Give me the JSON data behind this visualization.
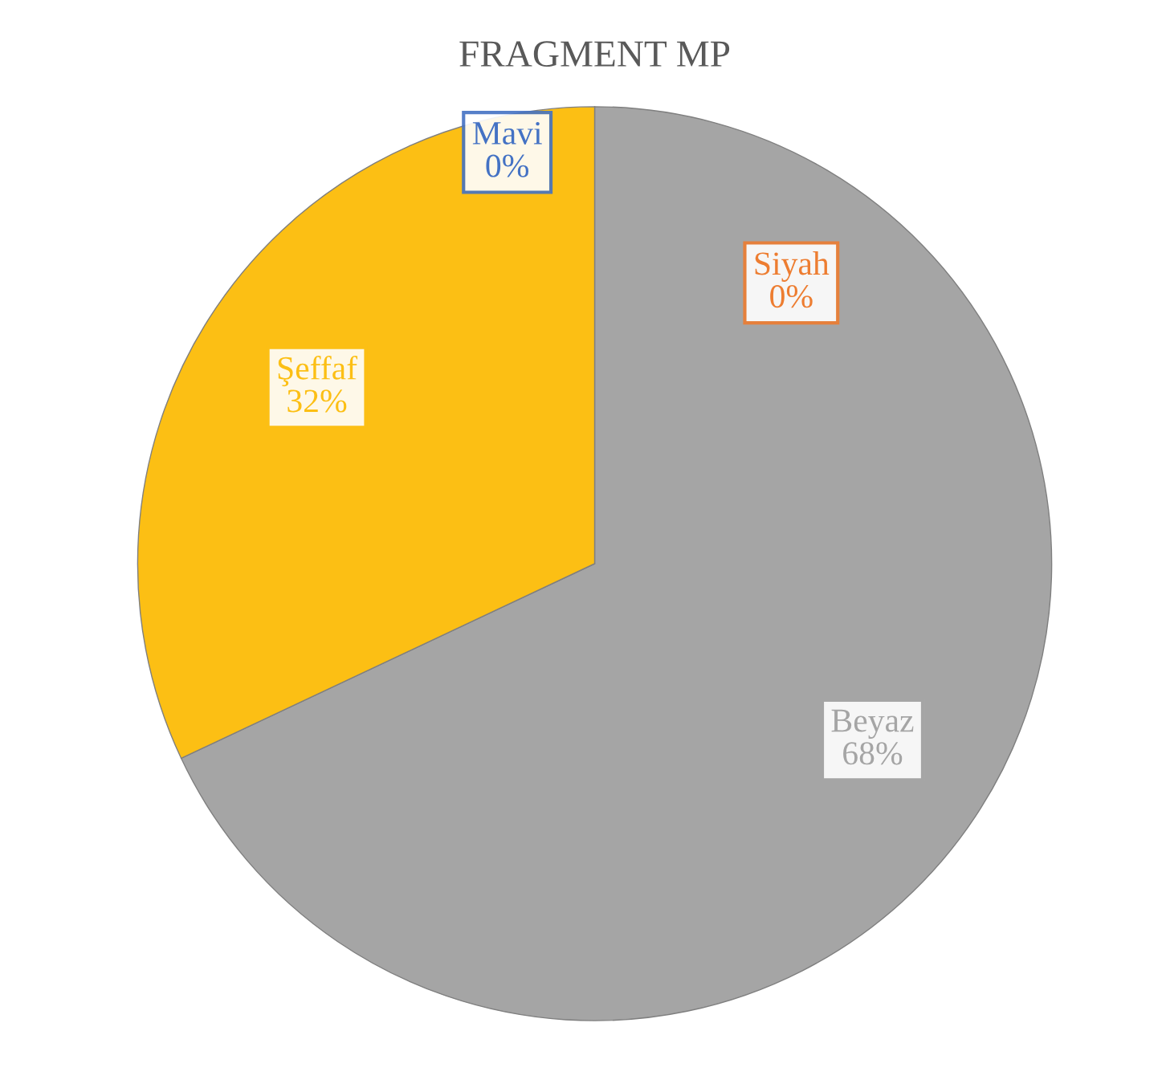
{
  "chart_data": {
    "type": "pie",
    "title": "FRAGMENT MP",
    "categories": [
      "Mavi",
      "Siyah",
      "Beyaz",
      "Şeffaf"
    ],
    "values": [
      0,
      0,
      68,
      32
    ],
    "value_labels": [
      "0%",
      "0%",
      "68%",
      "32%"
    ],
    "colors": [
      "#4472c4",
      "#ed7d31",
      "#a5a5a5",
      "#fcbf14"
    ]
  }
}
